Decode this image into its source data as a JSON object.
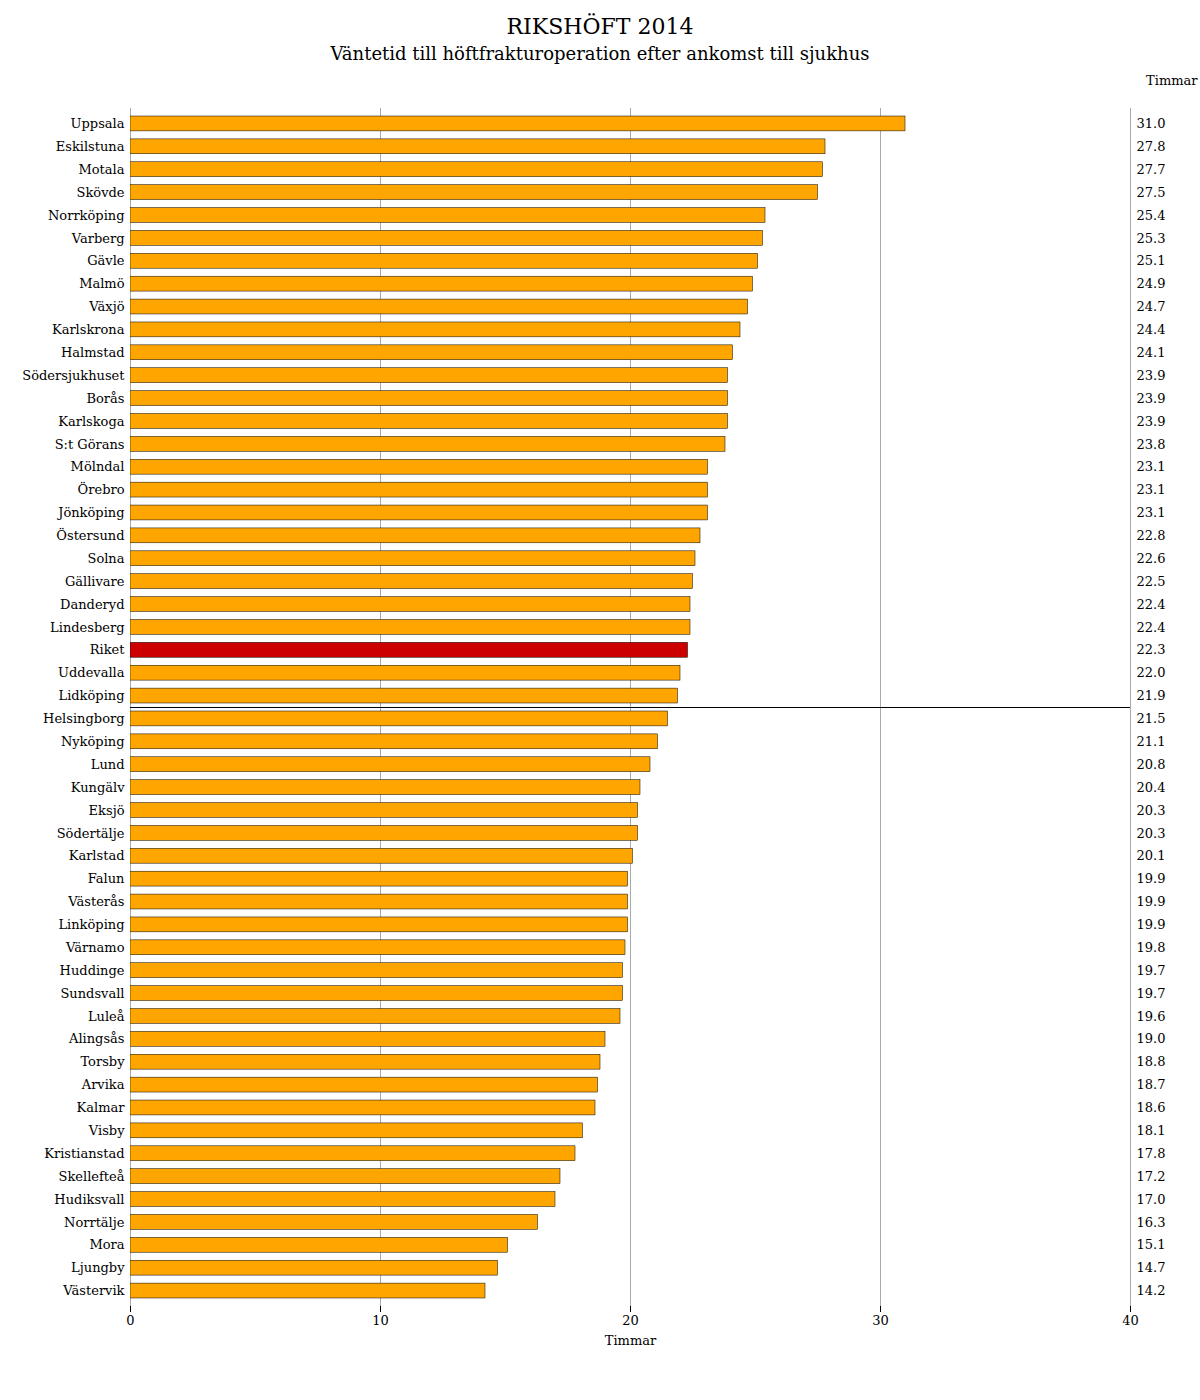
{
  "chart_data": {
    "type": "bar",
    "orientation": "horizontal",
    "title": "RIKSHÖFT 2014",
    "subtitle": "Väntetid till höftfrakturoperation efter ankomst till sjukhus",
    "xlabel": "Timmar",
    "y2label": "Timmar",
    "categories": [
      "Uppsala",
      "Eskilstuna",
      "Motala",
      "Skövde",
      "Norrköping",
      "Varberg",
      "Gävle",
      "Malmö",
      "Växjö",
      "Karlskrona",
      "Halmstad",
      "Södersjukhuset",
      "Borås",
      "Karlskoga",
      "S:t Görans",
      "Mölndal",
      "Örebro",
      "Jönköping",
      "Östersund",
      "Solna",
      "Gällivare",
      "Danderyd",
      "Lindesberg",
      "Riket",
      "Uddevalla",
      "Lidköping",
      "Helsingborg",
      "Nyköping",
      "Lund",
      "Kungälv",
      "Eksjö",
      "Södertälje",
      "Karlstad",
      "Falun",
      "Västerås",
      "Linköping",
      "Värnamo",
      "Huddinge",
      "Sundsvall",
      "Luleå",
      "Alingsås",
      "Torsby",
      "Arvika",
      "Kalmar",
      "Visby",
      "Kristianstad",
      "Skellefteå",
      "Hudiksvall",
      "Norrtälje",
      "Mora",
      "Ljungby",
      "Västervik"
    ],
    "values": [
      31.0,
      27.8,
      27.7,
      27.5,
      25.4,
      25.3,
      25.1,
      24.9,
      24.7,
      24.4,
      24.1,
      23.9,
      23.9,
      23.9,
      23.8,
      23.1,
      23.1,
      23.1,
      22.8,
      22.6,
      22.5,
      22.4,
      22.4,
      22.3,
      22.0,
      21.9,
      21.5,
      21.1,
      20.8,
      20.4,
      20.3,
      20.3,
      20.1,
      19.9,
      19.9,
      19.9,
      19.8,
      19.7,
      19.7,
      19.6,
      19.0,
      18.8,
      18.7,
      18.6,
      18.1,
      17.8,
      17.2,
      17.0,
      16.3,
      15.1,
      14.7,
      14.2
    ],
    "value_labels": [
      "31.0",
      "27.8",
      "27.7",
      "27.5",
      "25.4",
      "25.3",
      "25.1",
      "24.9",
      "24.7",
      "24.4",
      "24.1",
      "23.9",
      "23.9",
      "23.9",
      "23.8",
      "23.1",
      "23.1",
      "23.1",
      "22.8",
      "22.6",
      "22.5",
      "22.4",
      "22.4",
      "22.3",
      "22.0",
      "21.9",
      "21.5",
      "21.1",
      "20.8",
      "20.4",
      "20.3",
      "20.3",
      "20.1",
      "19.9",
      "19.9",
      "19.9",
      "19.8",
      "19.7",
      "19.7",
      "19.6",
      "19.0",
      "18.8",
      "18.7",
      "18.6",
      "18.1",
      "17.8",
      "17.2",
      "17.0",
      "16.3",
      "15.1",
      "14.7",
      "14.2"
    ],
    "data_labels": true,
    "colors": [
      "#FFA500",
      "#FFA500",
      "#FFA500",
      "#FFA500",
      "#FFA500",
      "#FFA500",
      "#FFA500",
      "#FFA500",
      "#FFA500",
      "#FFA500",
      "#FFA500",
      "#FFA500",
      "#FFA500",
      "#FFA500",
      "#FFA500",
      "#FFA500",
      "#FFA500",
      "#FFA500",
      "#FFA500",
      "#FFA500",
      "#FFA500",
      "#FFA500",
      "#FFA500",
      "#CC0000",
      "#FFA500",
      "#FFA500",
      "#FFA500",
      "#FFA500",
      "#FFA500",
      "#FFA500",
      "#FFA500",
      "#FFA500",
      "#FFA500",
      "#FFA500",
      "#FFA500",
      "#FFA500",
      "#FFA500",
      "#FFA500",
      "#FFA500",
      "#FFA500",
      "#FFA500",
      "#FFA500",
      "#FFA500",
      "#FFA500",
      "#FFA500",
      "#FFA500",
      "#FFA500",
      "#FFA500",
      "#FFA500",
      "#FFA500",
      "#FFA500",
      "#FFA500"
    ],
    "xlim": [
      0,
      40
    ],
    "xticks": [
      0,
      10,
      20,
      30,
      40
    ],
    "grid": true
  }
}
